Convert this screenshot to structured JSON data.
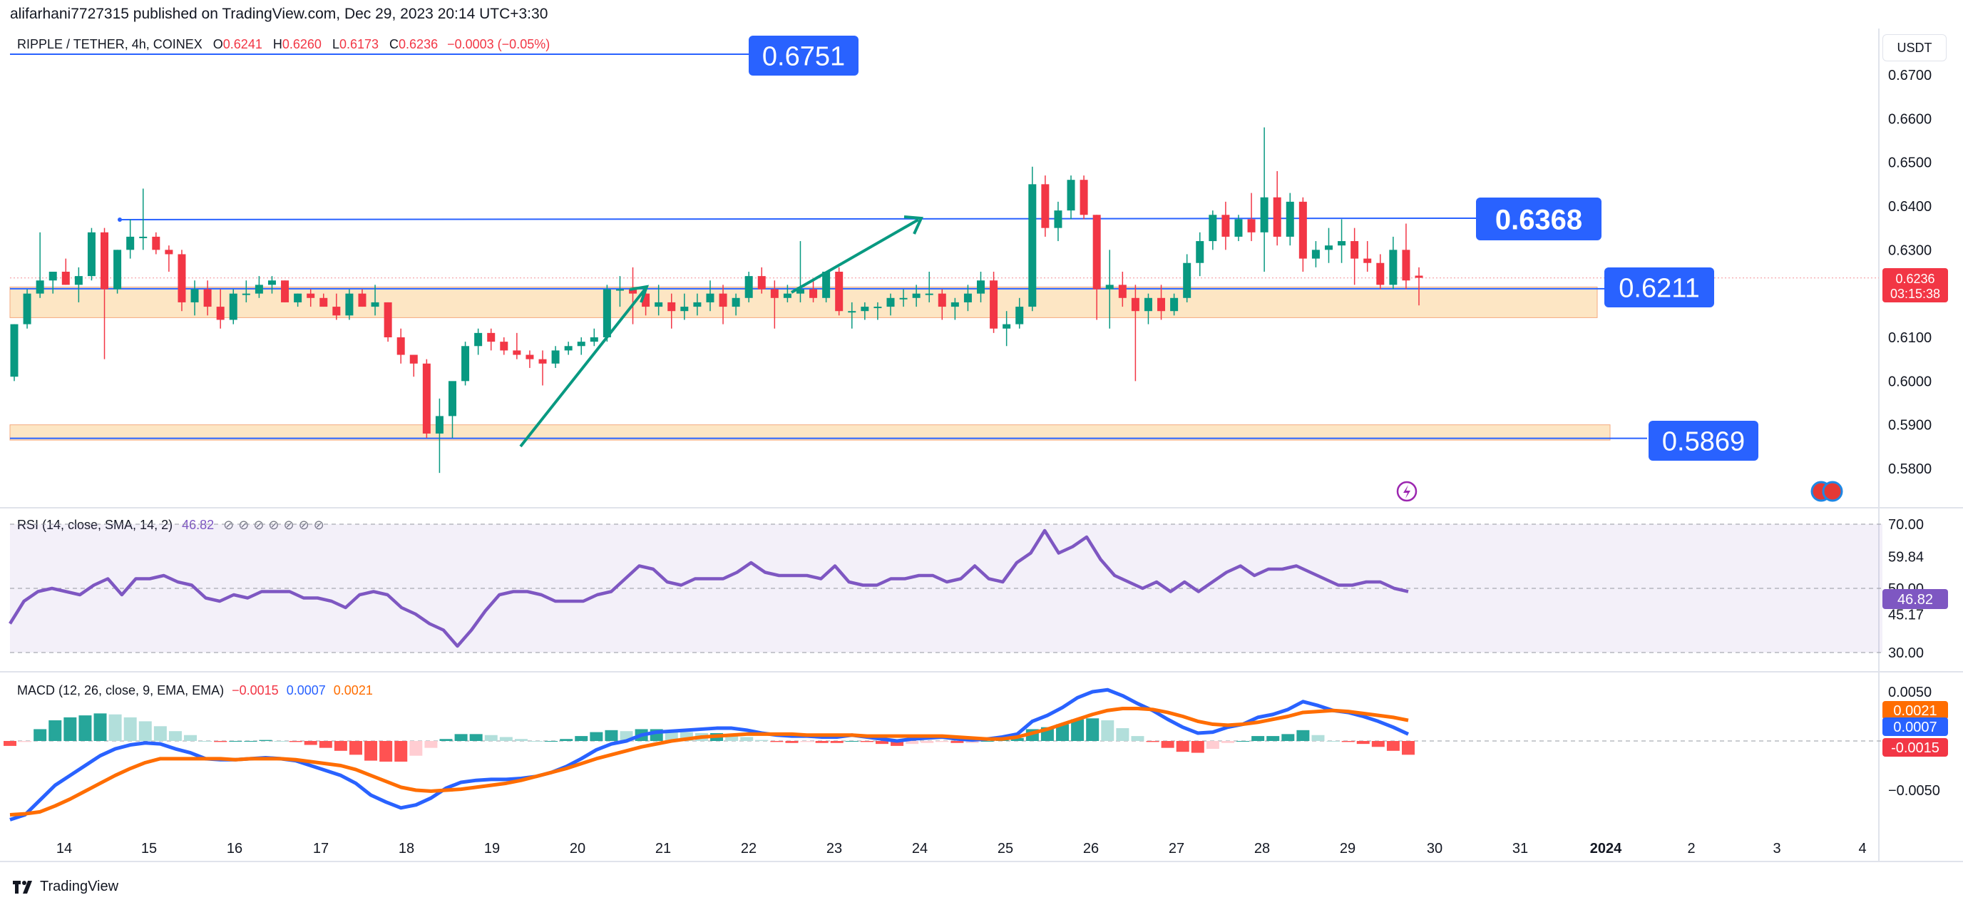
{
  "header": {
    "text": "alifarhani7727315 published on TradingView.com, Dec 29, 2023 20:14 UTC+3:30"
  },
  "legend": {
    "symbol": "RIPPLE / TETHER, 4h, COINEX",
    "o_label": "O",
    "o": "0.6241",
    "h_label": "H",
    "h": "0.6260",
    "l_label": "L",
    "l": "0.6173",
    "c_label": "C",
    "c": "0.6236",
    "change": "−0.0003 (−0.05%)"
  },
  "currency": "USDT",
  "rsi_legend": {
    "text": "RSI (14, close, SMA, 14, 2)",
    "value": "46.82"
  },
  "macd_legend": {
    "text": "MACD (12, 26, close, 9, EMA, EMA)",
    "v1": "−0.0015",
    "v2": "0.0007",
    "v3": "0.0021"
  },
  "footer": {
    "brand": "TradingView"
  },
  "colors": {
    "up": "#089981",
    "down": "#f23645",
    "line": "#2962ff",
    "zone": "#fde6c4",
    "rsi": "#7e57c2",
    "signal": "#ff6d00",
    "histUp": "#26a69a",
    "histUpLight": "#b2dfdb",
    "histDown": "#ff5252",
    "histDownLight": "#ffcdd2"
  },
  "chart_data": [
    {
      "type": "candlestick",
      "title": "RIPPLE / TETHER, 4h, COINEX",
      "ylim": [
        0.575,
        0.675
      ],
      "y_ticks": [
        "0.6700",
        "0.6600",
        "0.6500",
        "0.6400",
        "0.6300",
        "0.6200",
        "0.6100",
        "0.6000",
        "0.5900",
        "0.5800"
      ],
      "x_ticks": [
        "14",
        "15",
        "16",
        "17",
        "18",
        "19",
        "20",
        "21",
        "22",
        "23",
        "24",
        "25",
        "26",
        "27",
        "28",
        "29",
        "30",
        "31",
        "2024",
        "2",
        "3",
        "4"
      ],
      "last_price": "0.6236",
      "countdown": "03:15:38",
      "horizontal_levels": [
        "0.6751",
        "0.6368",
        "0.6211",
        "0.5869"
      ],
      "zones": [
        {
          "from": 0.6145,
          "to": 0.6215
        },
        {
          "from": 0.5865,
          "to": 0.59
        }
      ],
      "candles_ohlc": [
        [
          0.601,
          0.613,
          0.6,
          0.613
        ],
        [
          0.613,
          0.621,
          0.612,
          0.62
        ],
        [
          0.62,
          0.634,
          0.619,
          0.623
        ],
        [
          0.623,
          0.625,
          0.62,
          0.625
        ],
        [
          0.625,
          0.628,
          0.622,
          0.622
        ],
        [
          0.622,
          0.626,
          0.618,
          0.624
        ],
        [
          0.624,
          0.635,
          0.623,
          0.634
        ],
        [
          0.634,
          0.635,
          0.605,
          0.621
        ],
        [
          0.621,
          0.63,
          0.62,
          0.63
        ],
        [
          0.63,
          0.637,
          0.628,
          0.633
        ],
        [
          0.633,
          0.644,
          0.63,
          0.633
        ],
        [
          0.633,
          0.634,
          0.629,
          0.63
        ],
        [
          0.63,
          0.631,
          0.625,
          0.629
        ],
        [
          0.629,
          0.63,
          0.616,
          0.618
        ],
        [
          0.618,
          0.623,
          0.615,
          0.621
        ],
        [
          0.621,
          0.623,
          0.615,
          0.617
        ],
        [
          0.617,
          0.621,
          0.612,
          0.614
        ],
        [
          0.614,
          0.621,
          0.613,
          0.62
        ],
        [
          0.62,
          0.623,
          0.618,
          0.62
        ],
        [
          0.62,
          0.624,
          0.619,
          0.622
        ],
        [
          0.622,
          0.624,
          0.62,
          0.623
        ],
        [
          0.623,
          0.623,
          0.618,
          0.618
        ],
        [
          0.618,
          0.62,
          0.617,
          0.62
        ],
        [
          0.62,
          0.621,
          0.617,
          0.619
        ],
        [
          0.619,
          0.62,
          0.617,
          0.617
        ],
        [
          0.617,
          0.62,
          0.614,
          0.615
        ],
        [
          0.615,
          0.621,
          0.614,
          0.62
        ],
        [
          0.62,
          0.621,
          0.617,
          0.617
        ],
        [
          0.617,
          0.622,
          0.615,
          0.618
        ],
        [
          0.618,
          0.618,
          0.609,
          0.61
        ],
        [
          0.61,
          0.612,
          0.604,
          0.606
        ],
        [
          0.606,
          0.606,
          0.601,
          0.604
        ],
        [
          0.604,
          0.605,
          0.587,
          0.588
        ],
        [
          0.588,
          0.596,
          0.579,
          0.592
        ],
        [
          0.592,
          0.599,
          0.587,
          0.6
        ],
        [
          0.6,
          0.609,
          0.599,
          0.608
        ],
        [
          0.608,
          0.612,
          0.606,
          0.611
        ],
        [
          0.611,
          0.612,
          0.607,
          0.609
        ],
        [
          0.609,
          0.61,
          0.606,
          0.607
        ],
        [
          0.607,
          0.611,
          0.605,
          0.606
        ],
        [
          0.606,
          0.607,
          0.603,
          0.605
        ],
        [
          0.605,
          0.607,
          0.599,
          0.604
        ],
        [
          0.604,
          0.608,
          0.603,
          0.607
        ],
        [
          0.607,
          0.609,
          0.606,
          0.608
        ],
        [
          0.608,
          0.61,
          0.606,
          0.609
        ],
        [
          0.609,
          0.612,
          0.608,
          0.61
        ],
        [
          0.61,
          0.622,
          0.609,
          0.621
        ],
        [
          0.621,
          0.624,
          0.617,
          0.621
        ],
        [
          0.621,
          0.626,
          0.613,
          0.62
        ],
        [
          0.62,
          0.621,
          0.615,
          0.617
        ],
        [
          0.617,
          0.622,
          0.615,
          0.618
        ],
        [
          0.618,
          0.62,
          0.612,
          0.616
        ],
        [
          0.616,
          0.62,
          0.614,
          0.617
        ],
        [
          0.617,
          0.62,
          0.615,
          0.618
        ],
        [
          0.618,
          0.623,
          0.616,
          0.62
        ],
        [
          0.62,
          0.622,
          0.613,
          0.617
        ],
        [
          0.617,
          0.62,
          0.615,
          0.619
        ],
        [
          0.619,
          0.625,
          0.618,
          0.624
        ],
        [
          0.624,
          0.626,
          0.62,
          0.621
        ],
        [
          0.621,
          0.623,
          0.612,
          0.619
        ],
        [
          0.619,
          0.622,
          0.618,
          0.62
        ],
        [
          0.62,
          0.632,
          0.618,
          0.621
        ],
        [
          0.621,
          0.623,
          0.618,
          0.619
        ],
        [
          0.619,
          0.625,
          0.618,
          0.625
        ],
        [
          0.625,
          0.626,
          0.615,
          0.616
        ],
        [
          0.616,
          0.618,
          0.612,
          0.616
        ],
        [
          0.616,
          0.618,
          0.614,
          0.617
        ],
        [
          0.617,
          0.618,
          0.614,
          0.617
        ],
        [
          0.617,
          0.62,
          0.615,
          0.619
        ],
        [
          0.619,
          0.621,
          0.617,
          0.619
        ],
        [
          0.619,
          0.622,
          0.617,
          0.62
        ],
        [
          0.62,
          0.625,
          0.618,
          0.62
        ],
        [
          0.62,
          0.621,
          0.614,
          0.617
        ],
        [
          0.617,
          0.619,
          0.614,
          0.618
        ],
        [
          0.618,
          0.622,
          0.616,
          0.62
        ],
        [
          0.62,
          0.625,
          0.618,
          0.623
        ],
        [
          0.623,
          0.625,
          0.611,
          0.612
        ],
        [
          0.612,
          0.616,
          0.608,
          0.613
        ],
        [
          0.613,
          0.619,
          0.612,
          0.617
        ],
        [
          0.617,
          0.649,
          0.616,
          0.645
        ],
        [
          0.645,
          0.647,
          0.633,
          0.635
        ],
        [
          0.635,
          0.641,
          0.632,
          0.639
        ],
        [
          0.639,
          0.647,
          0.637,
          0.646
        ],
        [
          0.646,
          0.647,
          0.637,
          0.638
        ],
        [
          0.638,
          0.638,
          0.614,
          0.621
        ],
        [
          0.621,
          0.63,
          0.612,
          0.622
        ],
        [
          0.622,
          0.625,
          0.617,
          0.619
        ],
        [
          0.619,
          0.622,
          0.6,
          0.616
        ],
        [
          0.616,
          0.62,
          0.613,
          0.619
        ],
        [
          0.619,
          0.622,
          0.614,
          0.616
        ],
        [
          0.616,
          0.62,
          0.615,
          0.619
        ],
        [
          0.619,
          0.629,
          0.618,
          0.627
        ],
        [
          0.627,
          0.634,
          0.624,
          0.632
        ],
        [
          0.632,
          0.639,
          0.63,
          0.638
        ],
        [
          0.638,
          0.641,
          0.63,
          0.633
        ],
        [
          0.633,
          0.638,
          0.632,
          0.637
        ],
        [
          0.637,
          0.643,
          0.632,
          0.634
        ],
        [
          0.634,
          0.658,
          0.625,
          0.642
        ],
        [
          0.642,
          0.648,
          0.631,
          0.633
        ],
        [
          0.633,
          0.643,
          0.631,
          0.641
        ],
        [
          0.641,
          0.642,
          0.625,
          0.628
        ],
        [
          0.628,
          0.632,
          0.626,
          0.63
        ],
        [
          0.63,
          0.635,
          0.627,
          0.631
        ],
        [
          0.631,
          0.637,
          0.627,
          0.632
        ],
        [
          0.632,
          0.635,
          0.622,
          0.628
        ],
        [
          0.628,
          0.632,
          0.625,
          0.627
        ],
        [
          0.627,
          0.629,
          0.621,
          0.622
        ],
        [
          0.622,
          0.633,
          0.621,
          0.63
        ],
        [
          0.63,
          0.636,
          0.621,
          0.623
        ],
        [
          0.6241,
          0.626,
          0.6173,
          0.6236
        ]
      ]
    },
    {
      "type": "line",
      "title": "RSI (14, close, SMA, 14, 2)",
      "ylim": [
        30,
        70
      ],
      "y_ticks": [
        "70.00",
        "59.84",
        "50.00",
        "45.17",
        "30.00"
      ],
      "last": "46.82",
      "rsi_values": [
        39,
        46,
        49,
        50,
        49,
        48,
        51,
        53,
        48,
        53,
        53,
        54,
        52,
        51,
        47,
        46,
        48,
        47,
        49,
        49,
        49,
        47,
        47,
        46,
        44,
        48,
        49,
        48,
        44,
        42,
        39,
        37,
        32,
        37,
        43,
        48,
        49,
        49,
        48,
        46,
        46,
        46,
        48,
        49,
        53,
        57,
        56,
        52,
        51,
        53,
        53,
        53,
        55,
        58,
        55,
        54,
        54,
        54,
        53,
        57,
        52,
        51,
        51,
        53,
        53,
        54,
        54,
        52,
        53,
        57,
        53,
        52,
        58,
        61,
        68,
        61,
        63,
        66,
        59,
        54,
        52,
        50,
        52,
        49,
        52,
        49,
        52,
        55,
        57,
        54,
        56,
        56,
        57,
        55,
        53,
        51,
        51,
        52,
        52,
        50,
        49
      ],
      "rsi_sma_values": [
        46,
        46,
        46,
        46,
        46,
        46,
        46,
        47,
        47,
        47,
        47,
        47,
        47,
        47,
        47,
        47,
        47,
        47,
        47,
        47,
        47,
        47,
        47,
        47,
        47,
        47,
        47,
        47,
        47,
        47,
        47,
        47,
        47,
        47,
        47,
        47,
        47,
        47,
        47,
        47,
        47,
        47,
        47,
        47,
        47,
        48,
        48,
        48,
        48,
        48,
        48,
        48,
        48,
        48,
        48,
        48,
        48,
        48,
        48,
        48,
        48,
        48,
        48,
        48,
        48,
        48,
        48,
        48,
        48,
        48,
        48,
        48,
        49,
        49,
        49,
        49,
        49,
        49,
        49,
        49,
        49,
        49,
        49,
        49,
        49,
        49,
        49,
        49,
        49,
        49,
        49,
        49,
        49,
        49,
        49,
        49,
        49,
        49,
        49,
        49,
        48
      ]
    },
    {
      "type": "bar",
      "title": "MACD (12, 26, close, 9, EMA, EMA)",
      "ylim": [
        -0.0085,
        0.0058
      ],
      "y_ticks": [
        "0.0050",
        "0.0021",
        "0.0007",
        "-0.0015",
        "−0.0050"
      ],
      "series": [
        {
          "name": "MACD",
          "values": [
            -0.008,
            -0.0075,
            -0.006,
            -0.0045,
            -0.0035,
            -0.0025,
            -0.0015,
            -0.0008,
            -0.0004,
            -0.0002,
            -0.0003,
            -0.0008,
            -0.0012,
            -0.0018,
            -0.0019,
            -0.0019,
            -0.0018,
            -0.0017,
            -0.0018,
            -0.002,
            -0.0025,
            -0.003,
            -0.0035,
            -0.0043,
            -0.0055,
            -0.0062,
            -0.0068,
            -0.0065,
            -0.0058,
            -0.0048,
            -0.0042,
            -0.004,
            -0.0039,
            -0.0039,
            -0.0038,
            -0.0036,
            -0.0032,
            -0.0026,
            -0.0018,
            -0.0009,
            -0.0003,
            0.0,
            0.0006,
            0.0009,
            0.001,
            0.0011,
            0.0012,
            0.0013,
            0.0013,
            0.0011,
            0.0008,
            0.0006,
            0.0005,
            0.0005,
            0.0004,
            0.0004,
            0.0006,
            0.0004,
            0.0002,
            0.0,
            0.0002,
            0.0003,
            0.0004,
            0.0002,
            0.0001,
            0.0002,
            0.0004,
            0.0007,
            0.002,
            0.0026,
            0.0034,
            0.0044,
            0.005,
            0.0052,
            0.0046,
            0.0038,
            0.0031,
            0.0022,
            0.0014,
            0.0008,
            0.0009,
            0.0014,
            0.0017,
            0.0024,
            0.0027,
            0.0032,
            0.004,
            0.0036,
            0.0031,
            0.0029,
            0.0025,
            0.002,
            0.0014,
            0.0007
          ]
        },
        {
          "name": "Signal",
          "values": [
            -0.0075,
            -0.0074,
            -0.0072,
            -0.0066,
            -0.0059,
            -0.0051,
            -0.0043,
            -0.0035,
            -0.0028,
            -0.0022,
            -0.0018,
            -0.0018,
            -0.0018,
            -0.0018,
            -0.0018,
            -0.0019,
            -0.0018,
            -0.0018,
            -0.0018,
            -0.0019,
            -0.0021,
            -0.0023,
            -0.0025,
            -0.0029,
            -0.0035,
            -0.0041,
            -0.0047,
            -0.005,
            -0.0051,
            -0.005,
            -0.0049,
            -0.0047,
            -0.0045,
            -0.0043,
            -0.004,
            -0.0036,
            -0.0032,
            -0.0028,
            -0.0023,
            -0.0018,
            -0.0014,
            -0.001,
            -0.0006,
            -0.0003,
            0.0,
            0.0002,
            0.0004,
            0.0005,
            0.0006,
            0.0007,
            0.0007,
            0.0007,
            0.0007,
            0.0006,
            0.0006,
            0.0006,
            0.0006,
            0.0005,
            0.0005,
            0.0005,
            0.0005,
            0.0005,
            0.0005,
            0.0004,
            0.0003,
            0.0002,
            0.0002,
            0.0004,
            0.0008,
            0.0012,
            0.0017,
            0.0022,
            0.0027,
            0.0031,
            0.0033,
            0.0033,
            0.0032,
            0.0029,
            0.0025,
            0.002,
            0.0017,
            0.0016,
            0.0017,
            0.0019,
            0.0022,
            0.0025,
            0.0029,
            0.003,
            0.0031,
            0.003,
            0.0028,
            0.0026,
            0.0024,
            0.0021
          ]
        }
      ]
    }
  ]
}
